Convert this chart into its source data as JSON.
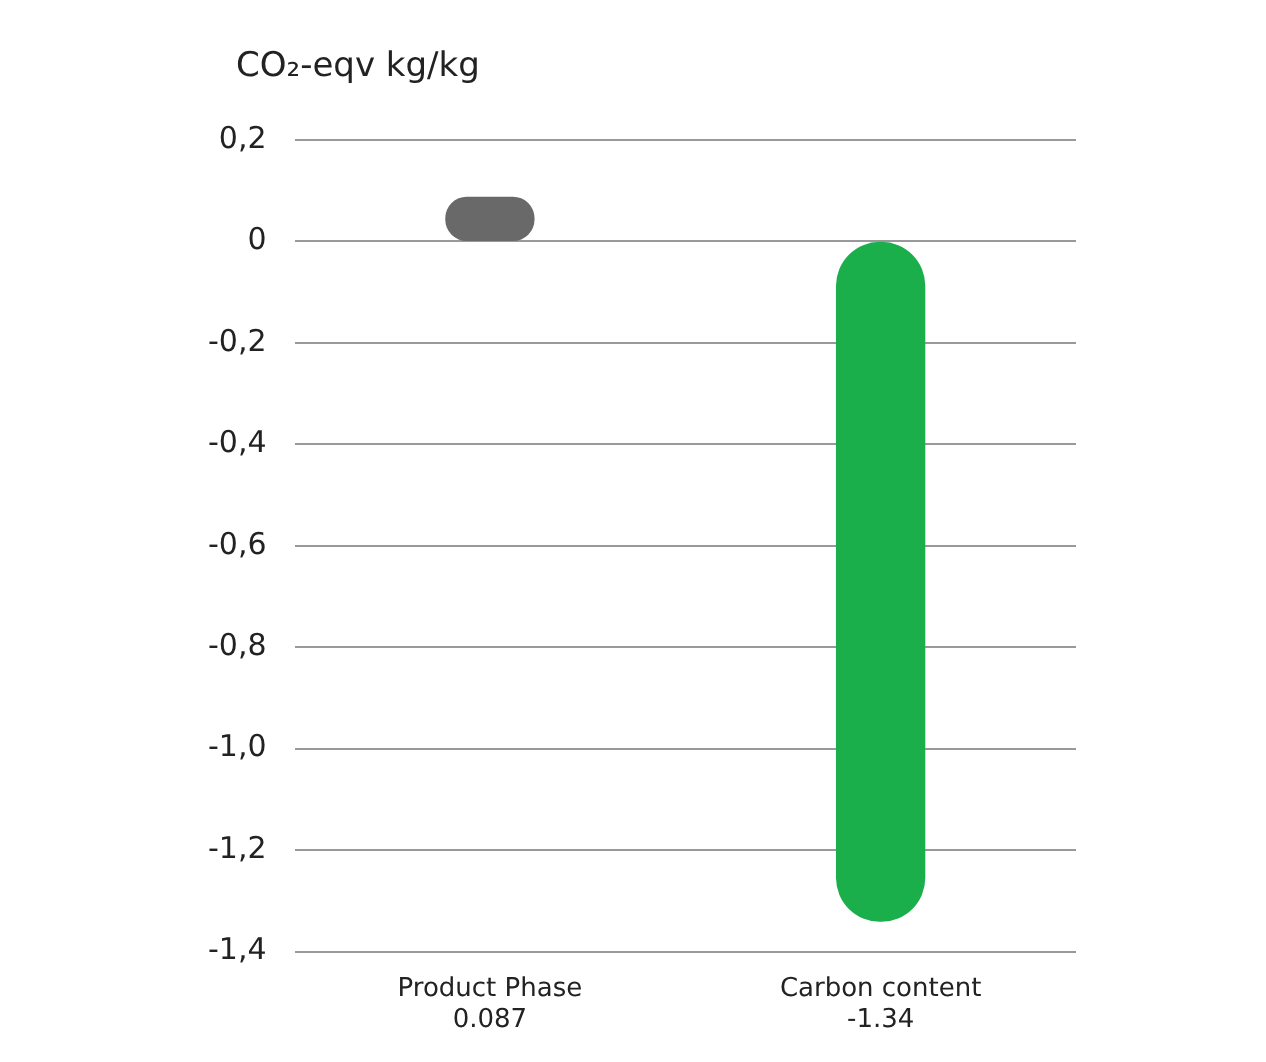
{
  "chart_data": {
    "type": "bar",
    "ylabel": "CO₂-eqv kg/kg",
    "categories": [
      "Product Phase",
      "Carbon content"
    ],
    "series": [
      {
        "colors": [
          "#696969",
          "#1aaf4b"
        ],
        "values": [
          0.087,
          -1.34
        ],
        "value_labels": [
          "0.087",
          "-1.34"
        ]
      }
    ],
    "ylim": [
      -1.4,
      0.2
    ],
    "yticks": [
      {
        "value": 0.2,
        "label": "0,2"
      },
      {
        "value": 0,
        "label": "0"
      },
      {
        "value": -0.2,
        "label": "-0,2"
      },
      {
        "value": -0.4,
        "label": "-0,4"
      },
      {
        "value": -0.6,
        "label": "-0,6"
      },
      {
        "value": -0.8,
        "label": "-0,8"
      },
      {
        "value": -1,
        "label": "-1,0"
      },
      {
        "value": -1.2,
        "label": "-1,2"
      },
      {
        "value": -1.4,
        "label": "-1,4"
      }
    ],
    "grid": "y",
    "legend": false
  }
}
